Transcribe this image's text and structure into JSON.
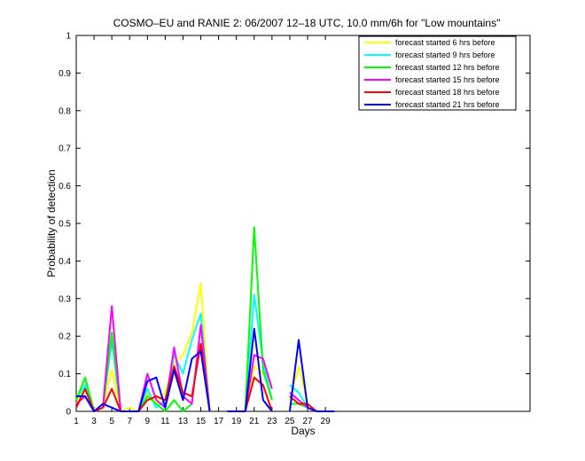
{
  "chart_data": {
    "type": "line",
    "title": "COSMO–EU and RANIE 2: 06/2007 12–18 UTC, 10.0 mm/6h for \"Low mountains\"",
    "xlabel": "Days",
    "ylabel": "Probability of detection",
    "xlim": [
      1,
      52
    ],
    "ylim": [
      0,
      1
    ],
    "xticks": [
      1,
      3,
      5,
      7,
      9,
      11,
      13,
      15,
      17,
      19,
      21,
      23,
      25,
      27,
      29
    ],
    "yticks": [
      0,
      0.1,
      0.2,
      0.3,
      0.4,
      0.5,
      0.6,
      0.7,
      0.8,
      0.9,
      1
    ],
    "ytick_labels": [
      "0",
      "0.1",
      "0.2",
      "0.3",
      "0.4",
      "0.5",
      "0.6",
      "0.7",
      "0.8",
      "0.9",
      "1"
    ],
    "legend_position": "top-right",
    "x": [
      1,
      2,
      3,
      4,
      5,
      6,
      7,
      8,
      9,
      10,
      11,
      12,
      13,
      14,
      15,
      16,
      17,
      18,
      19,
      20,
      21,
      22,
      23,
      24,
      25,
      26,
      27,
      28,
      29,
      30
    ],
    "series": [
      {
        "name": "forecast started 6 hrs before",
        "color": "#ffff00",
        "values": [
          0.02,
          0.06,
          0.0,
          0.01,
          0.11,
          0.0,
          0.01,
          0.0,
          0.05,
          0.02,
          0.05,
          0.13,
          0.15,
          0.21,
          0.34,
          0.0,
          null,
          0.0,
          0.0,
          0.0,
          0.12,
          0.1,
          0.07,
          null,
          0.03,
          0.12,
          0.02,
          0.0,
          0.0,
          0.0
        ]
      },
      {
        "name": "forecast started 9 hrs before",
        "color": "#00ffff",
        "values": [
          0.03,
          0.07,
          0.0,
          0.01,
          0.19,
          0.0,
          0.0,
          0.0,
          0.06,
          0.01,
          0.03,
          0.15,
          0.1,
          0.19,
          0.26,
          0.0,
          null,
          0.0,
          0.0,
          0.0,
          0.31,
          0.13,
          0.03,
          null,
          0.07,
          0.05,
          0.01,
          0.0,
          0.0,
          0.0
        ]
      },
      {
        "name": "forecast started 12 hrs before",
        "color": "#00ff00",
        "values": [
          0.03,
          0.09,
          0.0,
          0.01,
          0.21,
          0.0,
          0.0,
          0.0,
          0.04,
          0.02,
          0.0,
          0.03,
          0.0,
          0.02,
          null,
          null,
          null,
          null,
          null,
          0.0,
          0.49,
          0.11,
          0.03,
          null,
          0.02,
          0.02,
          0.01,
          0.0,
          0.0,
          0.0
        ]
      },
      {
        "name": "forecast started 15 hrs before",
        "color": "#ff00ff",
        "values": [
          0.02,
          0.04,
          0.0,
          0.01,
          0.28,
          0.0,
          0.0,
          0.0,
          0.1,
          0.03,
          0.01,
          0.17,
          0.04,
          0.02,
          0.23,
          0.0,
          null,
          0.0,
          0.0,
          0.0,
          0.15,
          0.14,
          0.06,
          null,
          0.05,
          0.03,
          0.01,
          0.0,
          0.0,
          0.0
        ]
      },
      {
        "name": "forecast started 18 hrs before",
        "color": "#ff0000",
        "values": [
          0.01,
          0.06,
          0.0,
          0.01,
          0.06,
          0.0,
          0.0,
          0.0,
          0.03,
          0.04,
          0.03,
          0.12,
          0.05,
          0.04,
          0.18,
          0.0,
          null,
          0.0,
          0.0,
          0.0,
          0.09,
          0.07,
          0.0,
          null,
          0.04,
          0.02,
          0.02,
          0.0,
          0.0,
          0.0
        ]
      },
      {
        "name": "forecast started 21 hrs before",
        "color": "#0000ff",
        "values": [
          0.04,
          0.04,
          0.0,
          0.02,
          0.01,
          0.0,
          0.0,
          0.0,
          0.08,
          0.09,
          0.01,
          0.11,
          0.03,
          0.14,
          0.16,
          0.0,
          null,
          0.0,
          0.0,
          0.0,
          0.22,
          0.03,
          0.0,
          null,
          0.0,
          0.19,
          0.01,
          0.0,
          0.0,
          0.0
        ]
      }
    ]
  }
}
